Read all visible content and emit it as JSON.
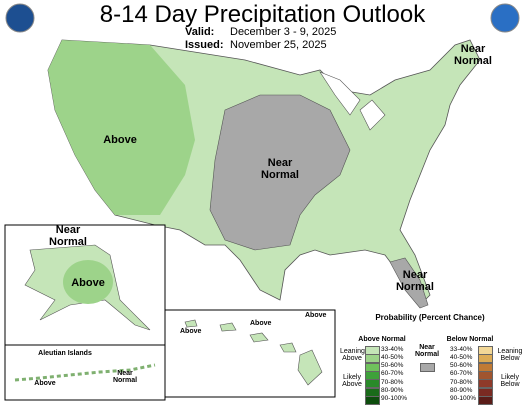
{
  "header": {
    "title": "8-14 Day Precipitation Outlook",
    "valid_label": "Valid:",
    "valid": "December 3 - 9, 2025",
    "issued_label": "Issued:",
    "issued": "November 25, 2025"
  },
  "map_labels": {
    "west": "Above",
    "central": "Near Normal",
    "northeast": "Near Normal",
    "florida": "Near Normal"
  },
  "alaska": {
    "north": "Near Normal",
    "south": "Above"
  },
  "aleutians": {
    "title": "Aleutian Islands",
    "west": "Above",
    "east": "Near Normal"
  },
  "hawaii": {
    "labels": [
      "Above",
      "Above",
      "Above"
    ]
  },
  "legend": {
    "title": "Probability (Percent Chance)",
    "above_title": "Above Normal",
    "below_title": "Below Normal",
    "near": "Near Normal",
    "near_color": "#a8a8a8",
    "leaning_above": "Leaning Above",
    "likely_above": "Likely Above",
    "leaning_below": "Leaning Below",
    "likely_below": "Likely Below",
    "above": [
      {
        "label": "33-40%",
        "color": "#c5e5b8"
      },
      {
        "label": "40-50%",
        "color": "#9dd38a"
      },
      {
        "label": "50-60%",
        "color": "#6fc25c"
      },
      {
        "label": "60-70%",
        "color": "#3ea13a"
      },
      {
        "label": "70-80%",
        "color": "#2a8a2a"
      },
      {
        "label": "80-90%",
        "color": "#1a6b1a"
      },
      {
        "label": "90-100%",
        "color": "#0d4d0d"
      }
    ],
    "below": [
      {
        "label": "33-40%",
        "color": "#f2d796"
      },
      {
        "label": "40-50%",
        "color": "#dcab55"
      },
      {
        "label": "50-60%",
        "color": "#c07a35"
      },
      {
        "label": "60-70%",
        "color": "#a0552f"
      },
      {
        "label": "70-80%",
        "color": "#8f3a2a"
      },
      {
        "label": "80-90%",
        "color": "#7a2a22"
      },
      {
        "label": "90-100%",
        "color": "#5a1c18"
      }
    ]
  }
}
